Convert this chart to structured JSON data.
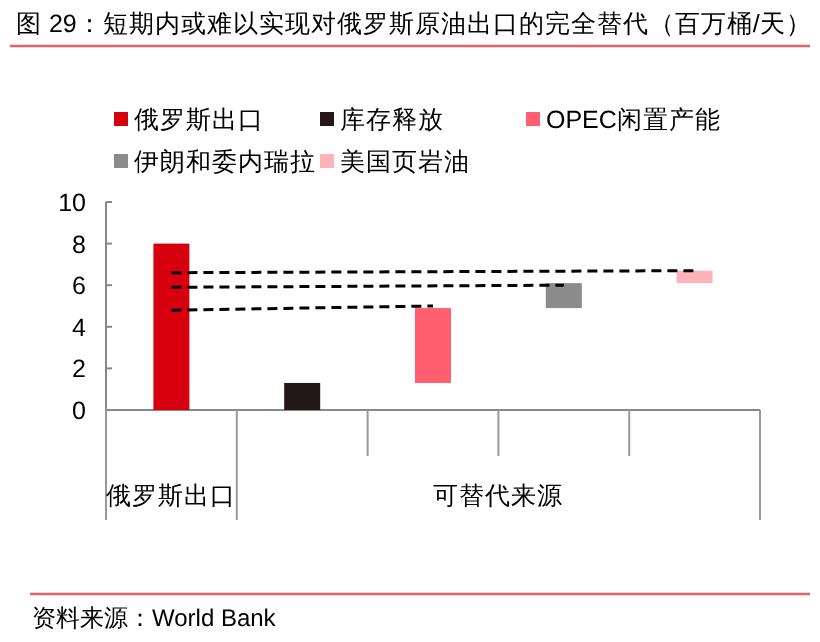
{
  "chart_data": {
    "type": "bar",
    "title": "图 29：短期内或难以实现对俄罗斯原油出口的完全替代（百万桶/天）",
    "categories": [
      null,
      null,
      null,
      null,
      null
    ],
    "series": [
      {
        "name": "俄罗斯出口",
        "color": "#d7000f",
        "values": [
          8.0,
          null,
          null,
          null,
          null
        ],
        "base": [
          0,
          null,
          null,
          null,
          null
        ]
      },
      {
        "name": "库存释放",
        "color": "#231815",
        "values": [
          null,
          1.3,
          null,
          null,
          null
        ],
        "base": [
          null,
          0,
          null,
          null,
          null
        ]
      },
      {
        "name": "OPEC闲置产能",
        "color": "#ff5f6e",
        "values": [
          null,
          null,
          3.6,
          null,
          null
        ],
        "base": [
          null,
          null,
          1.3,
          null,
          null
        ]
      },
      {
        "name": "伊朗和委内瑞拉",
        "color": "#8c8c8c",
        "values": [
          null,
          null,
          null,
          1.2,
          null
        ],
        "base": [
          null,
          null,
          null,
          4.9,
          null
        ]
      },
      {
        "name": "美国页岩油",
        "color": "#ffb3b8",
        "values": [
          null,
          null,
          null,
          null,
          0.6
        ],
        "base": [
          null,
          null,
          null,
          null,
          6.1
        ]
      },
      {
        "type": "line",
        "color": "#000000",
        "line_style": "dashed",
        "values": [
          6.6,
          null,
          null,
          null,
          6.7
        ]
      },
      {
        "type": "line",
        "color": "#000000",
        "line_style": "dashed",
        "values": [
          5.9,
          null,
          null,
          6.0,
          null
        ]
      },
      {
        "type": "line",
        "color": "#000000",
        "line_style": "dashed",
        "values": [
          4.8,
          null,
          5.0,
          null,
          null
        ]
      }
    ],
    "ylim": [
      0,
      10
    ],
    "yticks": [
      0,
      2,
      4,
      6,
      8,
      10
    ],
    "legend": "top",
    "annotations": [
      "俄罗斯出口",
      "可替代来源",
      "资料来源：World Bank"
    ]
  }
}
